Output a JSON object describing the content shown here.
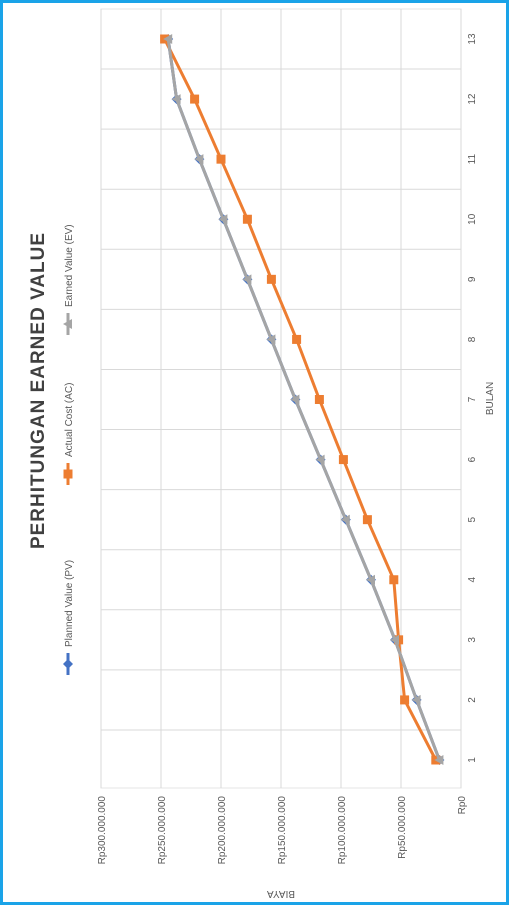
{
  "chart_data": {
    "type": "line",
    "title": "PERHITUNGAN EARNED VALUE",
    "xlabel": "BULAN",
    "ylabel": "BIAYA",
    "x": [
      1,
      2,
      3,
      4,
      5,
      6,
      7,
      8,
      9,
      10,
      11,
      12,
      13
    ],
    "x_ticks": [
      "1",
      "2",
      "3",
      "4",
      "5",
      "6",
      "7",
      "8",
      "9",
      "10",
      "11",
      "12",
      "13"
    ],
    "y_ticks": [
      "Rp0",
      "Rp50.000.000",
      "Rp100.000.000",
      "Rp150.000.000",
      "Rp200.000.000",
      "Rp250.000.000",
      "Rp300.000.000"
    ],
    "ylim": [
      0,
      300000000
    ],
    "grid": true,
    "legend_position": "top",
    "orientation": "rotated-90-clockwise",
    "series": [
      {
        "name": "Planned Value (PV)",
        "color": "#4472c4",
        "marker": "diamond",
        "values": [
          18000000,
          37000000,
          55000000,
          75000000,
          96000000,
          117000000,
          138000000,
          158000000,
          178000000,
          198000000,
          218000000,
          237000000,
          244000000
        ]
      },
      {
        "name": "Actual Cost (AC)",
        "color": "#ed7d31",
        "marker": "square",
        "values": [
          21000000,
          47000000,
          52000000,
          56000000,
          78000000,
          98000000,
          118000000,
          137000000,
          158000000,
          178000000,
          200000000,
          222000000,
          247000000
        ]
      },
      {
        "name": "Earned Value (EV)",
        "color": "#a5a5a5",
        "marker": "triangle",
        "values": [
          18000000,
          37000000,
          55000000,
          75000000,
          96000000,
          117000000,
          138000000,
          158000000,
          178000000,
          198000000,
          218000000,
          237000000,
          244000000
        ]
      }
    ]
  }
}
